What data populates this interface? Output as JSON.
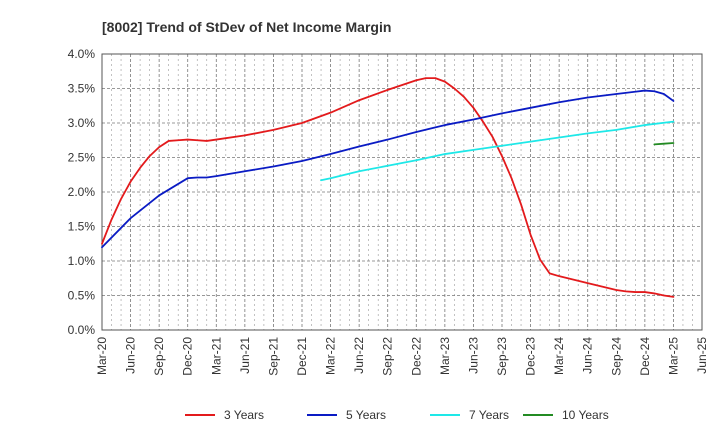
{
  "chart_data": {
    "type": "line",
    "title": "[8002]  Trend of StDev of Net Income Margin",
    "xlabel": "",
    "ylabel": "",
    "ylim": [
      0,
      4.0
    ],
    "y_ticks": [
      "0.0%",
      "0.5%",
      "1.0%",
      "1.5%",
      "2.0%",
      "2.5%",
      "3.0%",
      "3.5%",
      "4.0%"
    ],
    "x_ticks": [
      "Mar-20",
      "Jun-20",
      "Sep-20",
      "Dec-20",
      "Mar-21",
      "Jun-21",
      "Sep-21",
      "Dec-21",
      "Mar-22",
      "Jun-22",
      "Sep-22",
      "Dec-22",
      "Mar-23",
      "Jun-23",
      "Sep-23",
      "Dec-23",
      "Mar-24",
      "Jun-24",
      "Sep-24",
      "Dec-24",
      "Mar-25",
      "Jun-25"
    ],
    "grid": true,
    "legend_position": "bottom",
    "series": [
      {
        "name": "3 Years",
        "color": "#e31a1c",
        "x": [
          "Mar-20",
          "Apr-20",
          "May-20",
          "Jun-20",
          "Jul-20",
          "Aug-20",
          "Sep-20",
          "Oct-20",
          "Nov-20",
          "Dec-20",
          "Jan-21",
          "Feb-21",
          "Mar-21",
          "Jun-21",
          "Sep-21",
          "Dec-21",
          "Mar-22",
          "Jun-22",
          "Sep-22",
          "Dec-22",
          "Jan-23",
          "Feb-23",
          "Mar-23",
          "Apr-23",
          "May-23",
          "Jun-23",
          "Jul-23",
          "Aug-23",
          "Sep-23",
          "Oct-23",
          "Nov-23",
          "Dec-23",
          "Jan-24",
          "Feb-24",
          "Mar-24",
          "Jun-24",
          "Sep-24",
          "Oct-24",
          "Nov-24",
          "Dec-24",
          "Jan-25",
          "Feb-25",
          "Mar-25"
        ],
        "values": [
          1.25,
          1.6,
          1.9,
          2.15,
          2.35,
          2.52,
          2.65,
          2.74,
          2.75,
          2.76,
          2.75,
          2.74,
          2.76,
          2.82,
          2.9,
          3.0,
          3.15,
          3.33,
          3.48,
          3.62,
          3.65,
          3.65,
          3.6,
          3.5,
          3.38,
          3.22,
          3.02,
          2.8,
          2.52,
          2.2,
          1.82,
          1.38,
          1.02,
          0.82,
          0.78,
          0.68,
          0.58,
          0.56,
          0.55,
          0.55,
          0.53,
          0.5,
          0.48
        ]
      },
      {
        "name": "5 Years",
        "color": "#0a1bc4",
        "x": [
          "Mar-20",
          "Jun-20",
          "Sep-20",
          "Dec-20",
          "Jan-21",
          "Feb-21",
          "Mar-21",
          "Jun-21",
          "Sep-21",
          "Dec-21",
          "Mar-22",
          "Jun-22",
          "Sep-22",
          "Dec-22",
          "Mar-23",
          "Jun-23",
          "Sep-23",
          "Dec-23",
          "Mar-24",
          "Jun-24",
          "Sep-24",
          "Dec-24",
          "Jan-25",
          "Feb-25",
          "Mar-25"
        ],
        "values": [
          1.2,
          1.62,
          1.95,
          2.2,
          2.21,
          2.21,
          2.23,
          2.3,
          2.37,
          2.45,
          2.55,
          2.66,
          2.76,
          2.87,
          2.97,
          3.05,
          3.14,
          3.22,
          3.3,
          3.37,
          3.42,
          3.47,
          3.46,
          3.42,
          3.32
        ]
      },
      {
        "name": "7 Years",
        "color": "#1ee8e8",
        "x": [
          "Feb-22",
          "Mar-22",
          "Jun-22",
          "Sep-22",
          "Dec-22",
          "Mar-23",
          "Jun-23",
          "Sep-23",
          "Dec-23",
          "Mar-24",
          "Jun-24",
          "Sep-24",
          "Dec-24",
          "Mar-25"
        ],
        "values": [
          2.17,
          2.2,
          2.3,
          2.38,
          2.46,
          2.55,
          2.61,
          2.67,
          2.73,
          2.79,
          2.85,
          2.9,
          2.97,
          3.02
        ]
      },
      {
        "name": "10 Years",
        "color": "#238b23",
        "x": [
          "Jan-25",
          "Feb-25",
          "Mar-25"
        ],
        "values": [
          2.69,
          2.7,
          2.71
        ]
      }
    ]
  }
}
